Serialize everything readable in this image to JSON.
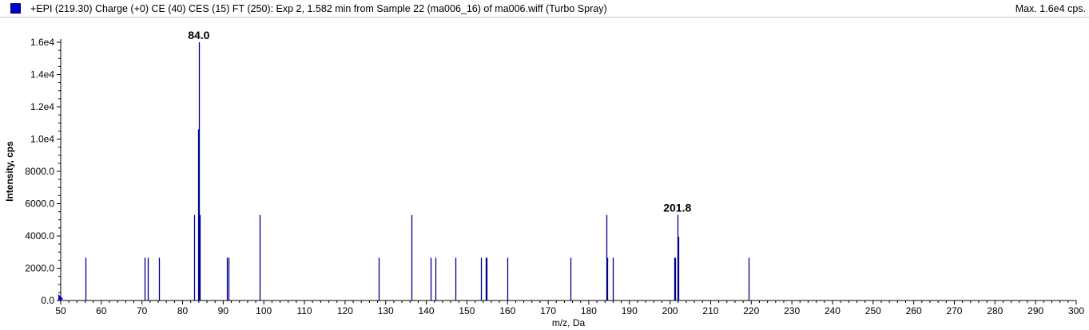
{
  "header": {
    "title": "+EPI (219.30) Charge (+0) CE (40) CES (15) FT (250): Exp 2, 1.582 min from Sample 22 (ma006_16) of ma006.wiff (Turbo Spray)",
    "max_label": "Max. 1.6e4 cps.",
    "legend_color": "#0000cc"
  },
  "chart_data": {
    "type": "bar",
    "xlabel": "m/z, Da",
    "ylabel": "Intensity, cps",
    "xlim": [
      50,
      300
    ],
    "ylim": [
      0,
      16000
    ],
    "x_ticks": [
      "50",
      "60",
      "70",
      "80",
      "90",
      "100",
      "110",
      "120",
      "130",
      "140",
      "150",
      "160",
      "170",
      "180",
      "190",
      "200",
      "210",
      "220",
      "230",
      "240",
      "250",
      "260",
      "270",
      "280",
      "290",
      "300"
    ],
    "y_ticks": [
      "0.0",
      "2000.0",
      "4000.0",
      "6000.0",
      "8000.0",
      "1.0e4",
      "1.2e4",
      "1.4e4",
      "1.6e4"
    ],
    "series_color": "#00008b",
    "peaks": [
      {
        "mz": 56.0,
        "intensity": 2650
      },
      {
        "mz": 70.6,
        "intensity": 2650
      },
      {
        "mz": 71.5,
        "intensity": 2650
      },
      {
        "mz": 74.2,
        "intensity": 2650
      },
      {
        "mz": 82.9,
        "intensity": 5300
      },
      {
        "mz": 83.9,
        "intensity": 10600
      },
      {
        "mz": 84.0,
        "intensity": 16000
      },
      {
        "mz": 84.3,
        "intensity": 5300
      },
      {
        "mz": 91.0,
        "intensity": 2650
      },
      {
        "mz": 91.4,
        "intensity": 2650
      },
      {
        "mz": 99.0,
        "intensity": 5300
      },
      {
        "mz": 128.2,
        "intensity": 2650
      },
      {
        "mz": 136.3,
        "intensity": 5300
      },
      {
        "mz": 141.0,
        "intensity": 2650
      },
      {
        "mz": 142.2,
        "intensity": 2650
      },
      {
        "mz": 147.1,
        "intensity": 2650
      },
      {
        "mz": 153.4,
        "intensity": 2650
      },
      {
        "mz": 154.6,
        "intensity": 2650
      },
      {
        "mz": 154.8,
        "intensity": 2650
      },
      {
        "mz": 159.9,
        "intensity": 2650
      },
      {
        "mz": 175.4,
        "intensity": 2650
      },
      {
        "mz": 184.3,
        "intensity": 5300
      },
      {
        "mz": 184.6,
        "intensity": 2650
      },
      {
        "mz": 185.9,
        "intensity": 2650
      },
      {
        "mz": 201.0,
        "intensity": 2650
      },
      {
        "mz": 201.3,
        "intensity": 2650
      },
      {
        "mz": 201.8,
        "intensity": 5300
      },
      {
        "mz": 202.0,
        "intensity": 3950
      },
      {
        "mz": 219.3,
        "intensity": 2650
      }
    ],
    "annotations": [
      {
        "label": "84.0",
        "mz": 84.0,
        "intensity": 16000
      },
      {
        "label": "201.8",
        "mz": 201.8,
        "intensity": 5300
      }
    ]
  }
}
